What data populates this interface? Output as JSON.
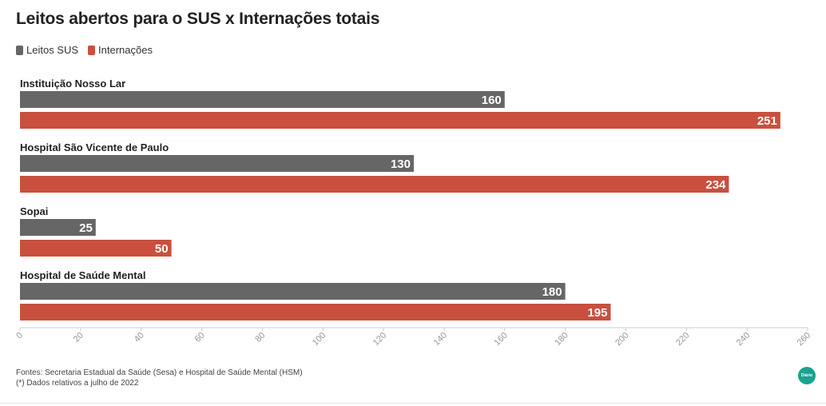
{
  "title": "Leitos abertos para o SUS x Internações totais",
  "colors": {
    "leitos": "#666666",
    "internacoes": "#c9503e",
    "axis": "#cccccc",
    "tick_text": "#999999"
  },
  "legend": [
    {
      "label": "Leitos SUS",
      "color": "#666666"
    },
    {
      "label": "Internações",
      "color": "#c9503e"
    }
  ],
  "chart_data": {
    "type": "bar",
    "orientation": "horizontal",
    "categories": [
      "Instituição Nosso Lar",
      "Hospital São Vicente de Paulo",
      "Sopai",
      "Hospital de Saúde Mental"
    ],
    "series": [
      {
        "name": "Leitos SUS",
        "color": "#666666",
        "values": [
          160,
          130,
          25,
          180
        ]
      },
      {
        "name": "Internações",
        "color": "#c9503e",
        "values": [
          251,
          234,
          50,
          195
        ]
      }
    ],
    "xlim": [
      0,
      260
    ],
    "xticks": [
      0,
      20,
      40,
      60,
      80,
      100,
      120,
      140,
      160,
      180,
      200,
      220,
      240,
      260
    ],
    "grid": false,
    "legend_position": "top-left"
  },
  "footer": {
    "source": "Fontes: Secretaria Estadual da Saúde (Sesa) e Hospital de Saúde Mental (HSM)",
    "note": "(*) Dados relativos a julho de 2022"
  },
  "logo_text": "Diário"
}
